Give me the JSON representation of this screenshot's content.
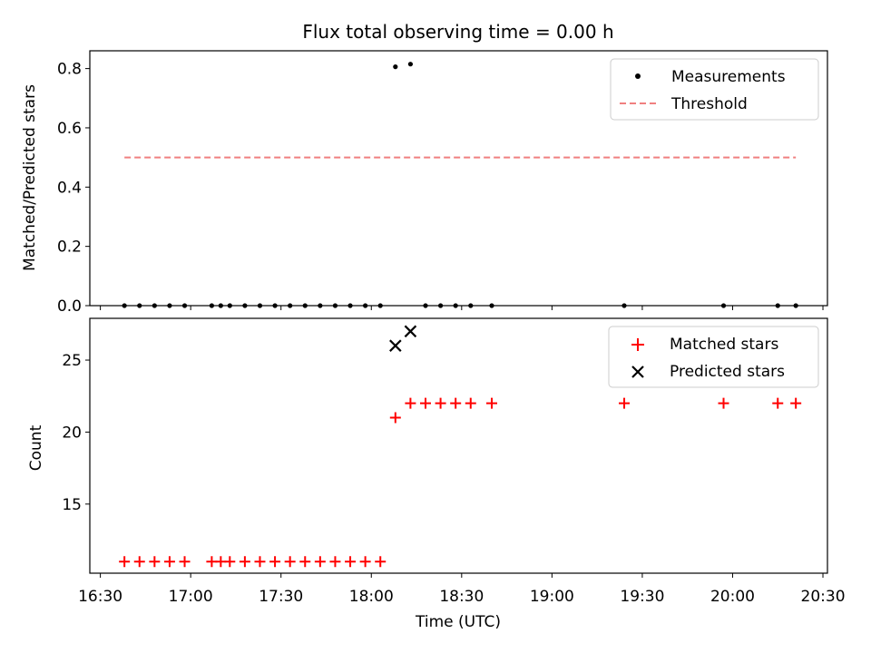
{
  "chart_data": [
    {
      "type": "scatter",
      "title": "Flux total observing time = 0.00 h",
      "xlabel": "",
      "ylabel": "Matched/Predicted stars",
      "xlim": [
        "16:30",
        "20:30"
      ],
      "ylim": [
        0,
        0.86
      ],
      "yticks": [
        "0.0",
        "0.2",
        "0.4",
        "0.6",
        "0.8"
      ],
      "legend": {
        "placement": "top-right",
        "entries": [
          "Measurements",
          "Threshold"
        ]
      },
      "grid": false,
      "series": [
        {
          "name": "Measurements",
          "marker": "dot",
          "color": "#000000",
          "points": [
            [
              "16:38",
              0
            ],
            [
              "16:43",
              0
            ],
            [
              "16:48",
              0
            ],
            [
              "16:53",
              0
            ],
            [
              "16:58",
              0
            ],
            [
              "17:07",
              0
            ],
            [
              "17:10",
              0
            ],
            [
              "17:13",
              0
            ],
            [
              "17:18",
              0
            ],
            [
              "17:23",
              0
            ],
            [
              "17:28",
              0
            ],
            [
              "17:33",
              0
            ],
            [
              "17:38",
              0
            ],
            [
              "17:43",
              0
            ],
            [
              "17:48",
              0
            ],
            [
              "17:53",
              0
            ],
            [
              "17:58",
              0
            ],
            [
              "18:03",
              0
            ],
            [
              "18:08",
              0.806
            ],
            [
              "18:13",
              0.815
            ],
            [
              "18:18",
              0
            ],
            [
              "18:23",
              0
            ],
            [
              "18:28",
              0
            ],
            [
              "18:33",
              0
            ],
            [
              "18:40",
              0
            ],
            [
              "19:24",
              0
            ],
            [
              "19:57",
              0
            ],
            [
              "20:15",
              0
            ],
            [
              "20:21",
              0
            ]
          ]
        },
        {
          "name": "Threshold",
          "style": "dashed-line",
          "color": "#f08080",
          "points": [
            [
              "16:38",
              0.5
            ],
            [
              "20:21",
              0.5
            ]
          ]
        }
      ]
    },
    {
      "type": "scatter",
      "title": "",
      "xlabel": "Time (UTC)",
      "ylabel": "Count",
      "xlim": [
        "16:30",
        "20:30"
      ],
      "ylim": [
        10.2,
        27.9
      ],
      "yticks": [
        "15",
        "20",
        "25"
      ],
      "xticks": [
        "16:30",
        "17:00",
        "17:30",
        "18:00",
        "18:30",
        "19:00",
        "19:30",
        "20:00",
        "20:30"
      ],
      "legend": {
        "placement": "top-right",
        "entries": [
          "Matched stars",
          "Predicted stars"
        ]
      },
      "grid": false,
      "series": [
        {
          "name": "Matched stars",
          "marker": "plus",
          "color": "#ff0000",
          "points": [
            [
              "16:38",
              11
            ],
            [
              "16:43",
              11
            ],
            [
              "16:48",
              11
            ],
            [
              "16:53",
              11
            ],
            [
              "16:58",
              11
            ],
            [
              "17:07",
              11
            ],
            [
              "17:10",
              11
            ],
            [
              "17:13",
              11
            ],
            [
              "17:18",
              11
            ],
            [
              "17:23",
              11
            ],
            [
              "17:28",
              11
            ],
            [
              "17:33",
              11
            ],
            [
              "17:38",
              11
            ],
            [
              "17:43",
              11
            ],
            [
              "17:48",
              11
            ],
            [
              "17:53",
              11
            ],
            [
              "17:58",
              11
            ],
            [
              "18:03",
              11
            ],
            [
              "18:08",
              21
            ],
            [
              "18:13",
              22
            ],
            [
              "18:18",
              22
            ],
            [
              "18:23",
              22
            ],
            [
              "18:28",
              22
            ],
            [
              "18:33",
              22
            ],
            [
              "18:40",
              22
            ],
            [
              "19:24",
              22
            ],
            [
              "19:57",
              22
            ],
            [
              "20:15",
              22
            ],
            [
              "20:21",
              22
            ]
          ]
        },
        {
          "name": "Predicted stars",
          "marker": "x",
          "color": "#000000",
          "points": [
            [
              "18:08",
              26
            ],
            [
              "18:13",
              27
            ]
          ]
        }
      ]
    }
  ]
}
